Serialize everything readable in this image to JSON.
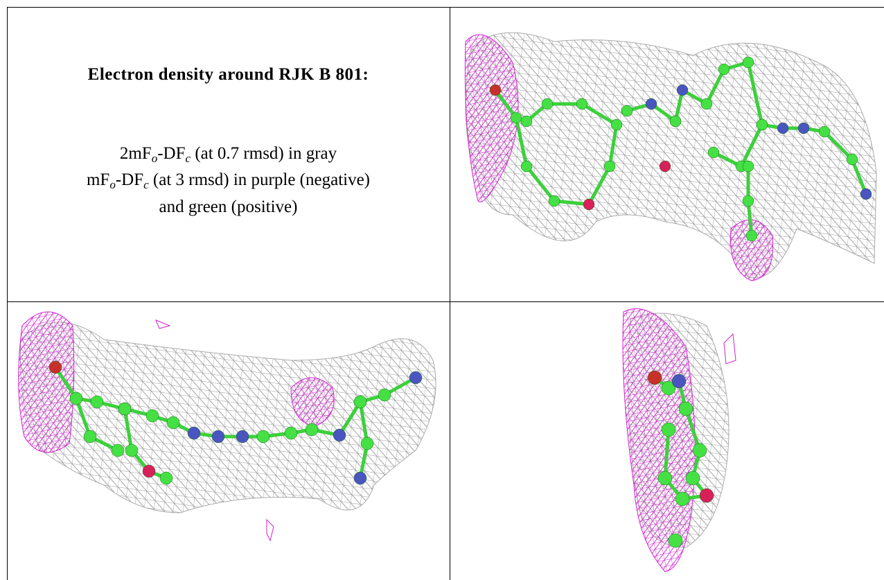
{
  "caption": {
    "title": "Electron density around RJK B 801:",
    "lines": [
      [
        "2mF",
        "o",
        "-DF",
        "c",
        " (at 0.7 rmsd) in gray"
      ],
      [
        "mF",
        "o",
        "-DF",
        "c",
        " (at 3 rmsd) in purple (negative)"
      ],
      [
        "and green (positive)"
      ]
    ]
  }
}
